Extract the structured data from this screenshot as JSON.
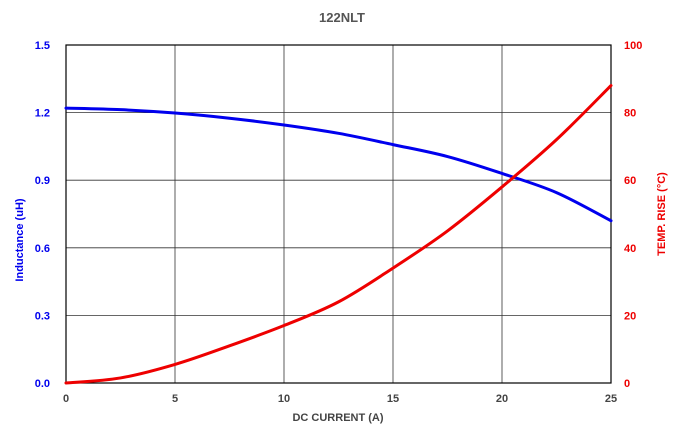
{
  "chart_data": {
    "type": "line",
    "title": "122NLT",
    "xlabel": "DC CURRENT (A)",
    "ylabel_left": "Inductance   (uH)",
    "ylabel_right": "TEMP. RISE (°C)",
    "xlim": [
      0,
      25
    ],
    "ylim_left": [
      0,
      1.5
    ],
    "ylim_right": [
      0,
      100
    ],
    "x_ticks": [
      "0",
      "5",
      "10",
      "15",
      "20",
      "25"
    ],
    "y_left_ticks": [
      "0.0",
      "0.3",
      "0.6",
      "0.9",
      "1.2",
      "1.5"
    ],
    "y_right_ticks": [
      "0",
      "20",
      "40",
      "60",
      "80",
      "100"
    ],
    "grid": true,
    "series": [
      {
        "axis": "left",
        "color": "#0000ee",
        "x": [
          0,
          2.5,
          5,
          7.5,
          10,
          12.5,
          15,
          17.5,
          20,
          22.5,
          25
        ],
        "values": [
          1.22,
          1.213,
          1.198,
          1.175,
          1.145,
          1.108,
          1.058,
          1.005,
          0.93,
          0.845,
          0.72
        ]
      },
      {
        "axis": "right",
        "color": "#ee0000",
        "x": [
          0,
          2.5,
          5,
          7.5,
          10,
          12.5,
          15,
          17.5,
          20,
          22.5,
          25
        ],
        "values": [
          0,
          1.5,
          5.5,
          11,
          17,
          24,
          34,
          45,
          58,
          72,
          88
        ]
      }
    ]
  }
}
